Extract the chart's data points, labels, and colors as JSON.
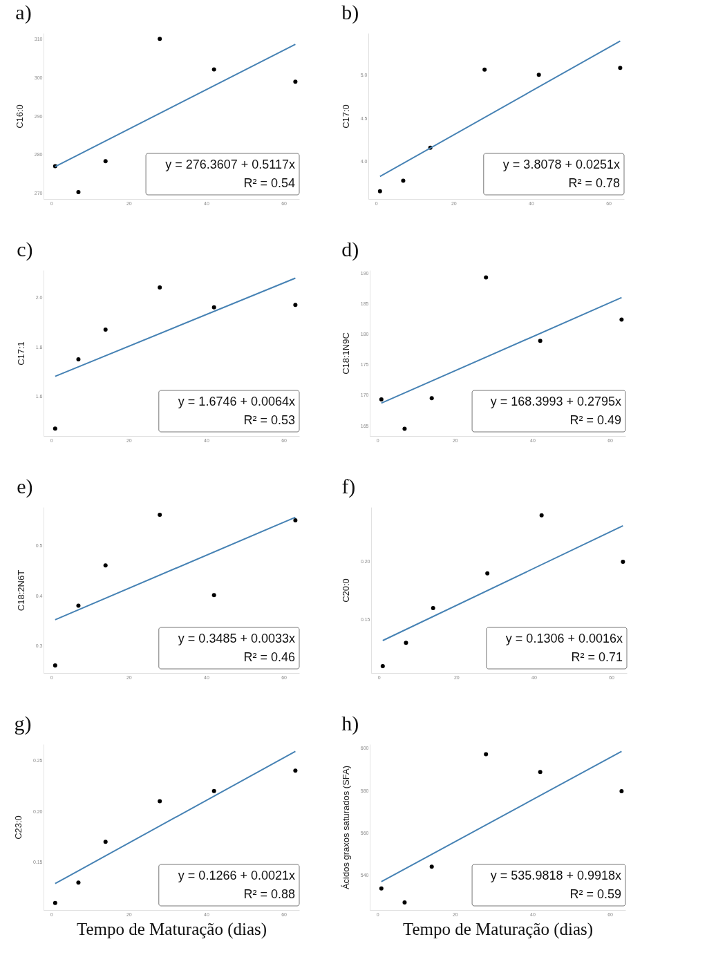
{
  "chart_data": [
    {
      "type": "scatter",
      "title": "a)",
      "ylabel": "C16:0",
      "xlim": [
        -2,
        64
      ],
      "xticks": [
        0,
        20,
        40,
        60
      ],
      "ylim": [
        268.5,
        311.5
      ],
      "yticks": [
        270,
        280,
        290,
        300,
        310
      ],
      "annotations": [
        "y = 276.3607 + 0.5117x",
        "R² = 0.54"
      ],
      "series": [
        {
          "type": "scatter",
          "marker": "circle",
          "color": "#000000",
          "x": [
            1,
            7,
            14,
            28,
            42,
            63
          ],
          "values": [
            277.0,
            270.3,
            278.3,
            310.0,
            302.1,
            298.9
          ]
        },
        {
          "type": "line",
          "color": "#4682b4",
          "x": [
            1,
            63
          ],
          "values": [
            276.9,
            308.6
          ]
        }
      ]
    },
    {
      "type": "scatter",
      "title": "b)",
      "ylabel": "C17:0",
      "xlim": [
        -2,
        64
      ],
      "xticks": [
        0,
        20,
        40,
        60
      ],
      "ylim": [
        3.57,
        5.48
      ],
      "yticks": [
        {
          "value": 4,
          "label": "4.0"
        },
        4.5,
        {
          "value": 5,
          "label": "5.0"
        }
      ],
      "annotations": [
        "y = 3.8078 + 0.0251x",
        "R² = 0.78"
      ],
      "series": [
        {
          "type": "scatter",
          "marker": "circle",
          "color": "#000000",
          "x": [
            1,
            7,
            14,
            28,
            42,
            63
          ],
          "values": [
            3.66,
            3.78,
            4.16,
            5.06,
            5.0,
            5.08
          ]
        },
        {
          "type": "line",
          "color": "#4682b4",
          "x": [
            1,
            63
          ],
          "values": [
            3.83,
            5.39
          ]
        }
      ]
    },
    {
      "type": "scatter",
      "title": "c)",
      "ylabel": "C17:1",
      "xlim": [
        -2,
        64
      ],
      "xticks": [
        0,
        20,
        40,
        60
      ],
      "ylim": [
        1.44,
        2.11
      ],
      "yticks": [
        1.6,
        1.8,
        {
          "value": 2,
          "label": "2.0"
        }
      ],
      "annotations": [
        "y = 1.6746 + 0.0064x",
        "R² = 0.53"
      ],
      "series": [
        {
          "type": "scatter",
          "marker": "circle",
          "color": "#000000",
          "x": [
            1,
            7,
            14,
            28,
            42,
            63
          ],
          "values": [
            1.47,
            1.75,
            1.87,
            2.04,
            1.96,
            1.97
          ]
        },
        {
          "type": "line",
          "color": "#4682b4",
          "x": [
            1,
            63
          ],
          "values": [
            1.681,
            2.078
          ]
        }
      ]
    },
    {
      "type": "scatter",
      "title": "d)",
      "ylabel": "C18:1N9C",
      "xlim": [
        -2,
        64
      ],
      "xticks": [
        0,
        20,
        40,
        60
      ],
      "ylim": [
        163.3,
        190.5
      ],
      "yticks": [
        165,
        170,
        175,
        180,
        185,
        190
      ],
      "annotations": [
        "y = 168.3993 + 0.2795x",
        "R² = 0.49"
      ],
      "series": [
        {
          "type": "scatter",
          "marker": "circle",
          "color": "#000000",
          "x": [
            1,
            7,
            14,
            28,
            42,
            63
          ],
          "values": [
            169.3,
            164.5,
            169.5,
            189.3,
            178.9,
            182.4
          ]
        },
        {
          "type": "line",
          "color": "#4682b4",
          "x": [
            1,
            63
          ],
          "values": [
            168.7,
            186.0
          ]
        }
      ]
    },
    {
      "type": "scatter",
      "title": "e)",
      "ylabel": "C18:2N6T",
      "xlim": [
        -2,
        64
      ],
      "xticks": [
        0,
        20,
        40,
        60
      ],
      "ylim": [
        0.246,
        0.576
      ],
      "yticks": [
        0.3,
        0.4,
        0.5
      ],
      "annotations": [
        "y = 0.3485 + 0.0033x",
        "R² = 0.46"
      ],
      "series": [
        {
          "type": "scatter",
          "marker": "circle",
          "color": "#000000",
          "x": [
            1,
            7,
            14,
            28,
            42,
            63
          ],
          "values": [
            0.261,
            0.38,
            0.46,
            0.561,
            0.401,
            0.55
          ]
        },
        {
          "type": "line",
          "color": "#4682b4",
          "x": [
            1,
            63
          ],
          "values": [
            0.352,
            0.556
          ]
        }
      ]
    },
    {
      "type": "scatter",
      "title": "f)",
      "ylabel": "C20:0",
      "xlim": [
        -2,
        64
      ],
      "xticks": [
        0,
        20,
        40,
        60
      ],
      "ylim": [
        0.104,
        0.247
      ],
      "yticks": [
        0.15,
        {
          "value": 0.2,
          "label": "0.20"
        }
      ],
      "annotations": [
        "y = 0.1306 + 0.0016x",
        "R² = 0.71"
      ],
      "series": [
        {
          "type": "scatter",
          "marker": "circle",
          "color": "#000000",
          "x": [
            1,
            7,
            14,
            28,
            42,
            63
          ],
          "values": [
            0.11,
            0.13,
            0.16,
            0.19,
            0.24,
            0.2
          ]
        },
        {
          "type": "line",
          "color": "#4682b4",
          "x": [
            1,
            63
          ],
          "values": [
            0.132,
            0.231
          ]
        }
      ]
    },
    {
      "type": "scatter",
      "title": "g)",
      "xlabel": "Tempo de Maturação (dias)",
      "ylabel": "C23:0",
      "xlim": [
        -2,
        64
      ],
      "xticks": [
        0,
        20,
        40,
        60
      ],
      "ylim": [
        0.103,
        0.266
      ],
      "yticks": [
        0.15,
        {
          "value": 0.2,
          "label": "0.20"
        },
        0.25
      ],
      "annotations": [
        "y = 0.1266 + 0.0021x",
        "R² = 0.88"
      ],
      "series": [
        {
          "type": "scatter",
          "marker": "circle",
          "color": "#000000",
          "x": [
            1,
            7,
            14,
            28,
            42,
            63
          ],
          "values": [
            0.11,
            0.13,
            0.17,
            0.21,
            0.22,
            0.24
          ]
        },
        {
          "type": "line",
          "color": "#4682b4",
          "x": [
            1,
            63
          ],
          "values": [
            0.129,
            0.259
          ]
        }
      ]
    },
    {
      "type": "scatter",
      "title": "h)",
      "xlabel": "Tempo de Maturação (dias)",
      "ylabel": "Ácidos graxos saturados (SFA)",
      "xlim": [
        -2,
        64
      ],
      "xticks": [
        0,
        20,
        40,
        60
      ],
      "ylim": [
        523.6,
        601.9
      ],
      "yticks": [
        540,
        560,
        580,
        600
      ],
      "annotations": [
        "y = 535.9818 + 0.9918x",
        "R² = 0.59"
      ],
      "series": [
        {
          "type": "scatter",
          "marker": "circle",
          "color": "#000000",
          "x": [
            1,
            7,
            14,
            28,
            42,
            63
          ],
          "values": [
            533.8,
            527.2,
            544.1,
            597.2,
            588.8,
            579.7
          ]
        },
        {
          "type": "line",
          "color": "#4682b4",
          "x": [
            1,
            63
          ],
          "values": [
            537.0,
            598.5
          ]
        }
      ]
    }
  ]
}
